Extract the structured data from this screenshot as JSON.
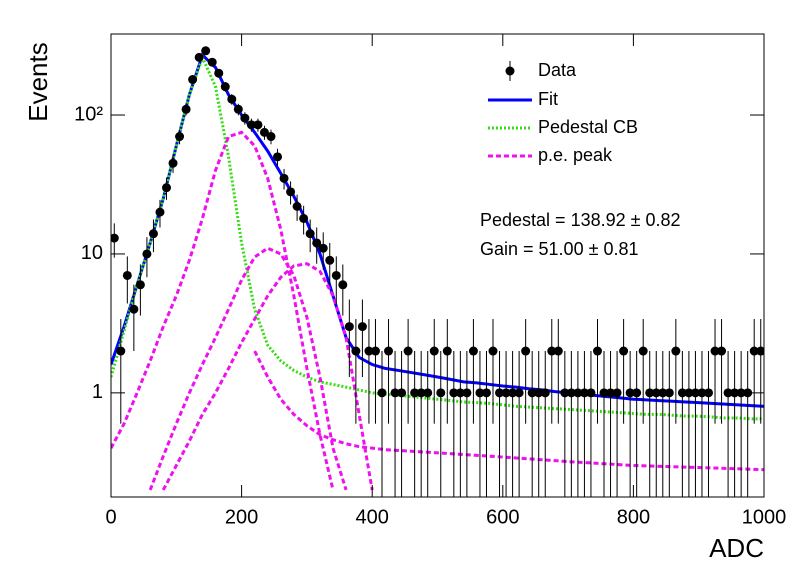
{
  "chart_data": {
    "type": "line",
    "xlabel": "ADC",
    "ylabel": "Events",
    "xlim": [
      0,
      1000
    ],
    "xticks": [
      0,
      200,
      400,
      600,
      800,
      1000
    ],
    "ylim": [
      0.178,
      383
    ],
    "yticks": [
      1,
      10,
      {
        "value": 100,
        "label": "10²"
      }
    ],
    "log_y": true,
    "annotations": [
      "Pedestal = 138.92 ± 0.82",
      "Gain = 51.00 ± 0.81"
    ],
    "data": {
      "name": "Data",
      "color": "#000000",
      "x": [
        5,
        15,
        25,
        35,
        45,
        55,
        65,
        75,
        85,
        95,
        105,
        115,
        125,
        135,
        145,
        155,
        165,
        175,
        185,
        195,
        205,
        215,
        225,
        235,
        245,
        255,
        265,
        275,
        285,
        295,
        305,
        315,
        325,
        335,
        345,
        355,
        365,
        375,
        385,
        395,
        405,
        415,
        425,
        435,
        445,
        455,
        465,
        475,
        485,
        495,
        505,
        515,
        525,
        535,
        545,
        555,
        565,
        575,
        585,
        595,
        605,
        615,
        625,
        635,
        645,
        655,
        665,
        675,
        685,
        695,
        705,
        715,
        725,
        735,
        745,
        755,
        765,
        775,
        785,
        795,
        805,
        815,
        825,
        835,
        845,
        855,
        865,
        875,
        885,
        895,
        905,
        915,
        925,
        935,
        945,
        955,
        965,
        975,
        985,
        995
      ],
      "values": [
        13,
        2,
        7,
        4,
        6,
        10,
        14,
        20,
        30,
        45,
        70,
        110,
        180,
        260,
        290,
        240,
        200,
        160,
        130,
        110,
        95,
        85,
        85,
        75,
        70,
        50,
        35,
        28,
        22,
        18,
        14,
        12,
        11,
        9,
        7,
        6,
        3,
        2,
        3,
        2,
        2,
        1,
        2,
        1,
        1,
        2,
        1,
        1,
        1,
        2,
        1,
        2,
        1,
        1,
        1,
        2,
        1,
        1,
        2,
        1,
        1,
        1,
        1,
        2,
        1,
        1,
        1,
        2,
        2,
        1,
        1,
        1,
        1,
        1,
        2,
        1,
        1,
        1,
        2,
        1,
        1,
        2,
        1,
        1,
        1,
        1,
        2,
        1,
        1,
        1,
        1,
        1,
        2,
        2,
        1,
        1,
        1,
        1,
        2,
        2
      ],
      "errors": [
        3.6,
        1.4,
        2.6,
        2,
        2.4,
        3.2,
        3.7,
        4.5,
        5.5,
        6.7,
        8.4,
        10.5,
        13.4,
        16.1,
        17,
        15.5,
        14.1,
        12.6,
        11.4,
        10.5,
        9.7,
        9.2,
        9.2,
        8.7,
        8.4,
        7.1,
        5.9,
        5.3,
        4.7,
        4.2,
        3.7,
        3.5,
        3.3,
        3,
        2.6,
        2.4,
        1.7,
        1.4,
        1.7,
        1.4,
        1.4,
        1,
        1.4,
        1,
        1,
        1.4,
        1,
        1,
        1,
        1.4,
        1,
        1.4,
        1,
        1,
        1,
        1.4,
        1,
        1,
        1.4,
        1,
        1,
        1,
        1,
        1.4,
        1,
        1,
        1,
        1.4,
        1.4,
        1,
        1,
        1,
        1,
        1,
        1.4,
        1,
        1,
        1,
        1.4,
        1,
        1,
        1.4,
        1,
        1,
        1,
        1,
        1.4,
        1,
        1,
        1,
        1,
        1,
        1.4,
        1.4,
        1,
        1,
        1,
        1,
        1.4,
        1.4
      ]
    },
    "curve_x": [
      0,
      20,
      40,
      60,
      80,
      100,
      120,
      140,
      160,
      180,
      200,
      220,
      240,
      260,
      280,
      300,
      320,
      340,
      360,
      380,
      400,
      420,
      440,
      460,
      480,
      500,
      520,
      540,
      560,
      580,
      600,
      620,
      640,
      660,
      680,
      700,
      720,
      740,
      760,
      780,
      800,
      820,
      840,
      860,
      880,
      900,
      920,
      940,
      960,
      980,
      1000
    ],
    "series": [
      {
        "name": "Fit",
        "color": "#0000ff",
        "dash": "none",
        "curves": [
          [
            1.6,
            3,
            6,
            12,
            25,
            60,
            140,
            270,
            220,
            140,
            100,
            75,
            55,
            38,
            26,
            17,
            10,
            5,
            2.5,
            1.8,
            1.6,
            1.5,
            1.45,
            1.4,
            1.35,
            1.3,
            1.25,
            1.2,
            1.18,
            1.15,
            1.12,
            1.1,
            1.07,
            1.05,
            1.02,
            1.0,
            0.98,
            0.96,
            0.94,
            0.92,
            0.9,
            0.89,
            0.88,
            0.87,
            0.86,
            0.85,
            0.84,
            0.83,
            0.82,
            0.81,
            0.8
          ]
        ]
      },
      {
        "name": "Pedestal CB",
        "color": "#33dd11",
        "dash": "2 2",
        "curves": [
          [
            1.3,
            2.8,
            6,
            12,
            25,
            60,
            140,
            260,
            160,
            50,
            12,
            4,
            2.2,
            1.7,
            1.45,
            1.3,
            1.2,
            1.15,
            1.1,
            1.05,
            1.0,
            0.98,
            0.96,
            0.94,
            0.92,
            0.9,
            0.88,
            0.86,
            0.85,
            0.84,
            0.82,
            0.8,
            0.79,
            0.78,
            0.77,
            0.76,
            0.75,
            0.74,
            0.73,
            0.72,
            0.71,
            0.7,
            0.7,
            0.69,
            0.68,
            0.68,
            0.67,
            0.66,
            0.66,
            0.65,
            0.65
          ]
        ]
      },
      {
        "name": "p.e. peak",
        "color": "#ee11ee",
        "dash": "5 3",
        "curves": [
          [
            0.4,
            0.6,
            1.0,
            1.7,
            3,
            5,
            9,
            18,
            40,
            70,
            75,
            60,
            35,
            15,
            5,
            1.5,
            0.5,
            0.2,
            null,
            null,
            null,
            null,
            null,
            null,
            null,
            null,
            null,
            null,
            null,
            null,
            null,
            null,
            null,
            null,
            null,
            null,
            null,
            null,
            null,
            null,
            null,
            null,
            null,
            null,
            null,
            null,
            null,
            null,
            null,
            null,
            null
          ],
          [
            null,
            null,
            null,
            0.2,
            0.35,
            0.6,
            1.0,
            1.6,
            2.5,
            4,
            6.5,
            9.5,
            11,
            10,
            7,
            3.5,
            1.3,
            0.4,
            0.2,
            null,
            null,
            null,
            null,
            null,
            null,
            null,
            null,
            null,
            null,
            null,
            null,
            null,
            null,
            null,
            null,
            null,
            null,
            null,
            null,
            null,
            null,
            null,
            null,
            null,
            null,
            null,
            null,
            null,
            null,
            null,
            null
          ],
          [
            null,
            null,
            null,
            null,
            0.2,
            0.3,
            0.45,
            0.7,
            1.0,
            1.5,
            2.3,
            3.4,
            5,
            6.8,
            8.2,
            8.5,
            7.5,
            5,
            2.5,
            0.7,
            0.2,
            null,
            null,
            null,
            null,
            null,
            null,
            null,
            null,
            null,
            null,
            null,
            null,
            null,
            null,
            null,
            null,
            null,
            null,
            null,
            null,
            null,
            null,
            null,
            null,
            null,
            null,
            null,
            null,
            null,
            null
          ],
          [
            null,
            null,
            null,
            null,
            null,
            null,
            null,
            null,
            null,
            null,
            null,
            2,
            1.3,
            0.9,
            0.7,
            0.58,
            0.5,
            0.46,
            0.43,
            0.41,
            0.4,
            0.39,
            0.385,
            0.38,
            0.375,
            0.37,
            0.365,
            0.36,
            0.355,
            0.35,
            0.345,
            0.34,
            0.335,
            0.33,
            0.325,
            0.32,
            0.316,
            0.312,
            0.308,
            0.304,
            0.3,
            0.298,
            0.296,
            0.294,
            0.292,
            0.29,
            0.288,
            0.286,
            0.284,
            0.282,
            0.28
          ]
        ]
      }
    ]
  }
}
